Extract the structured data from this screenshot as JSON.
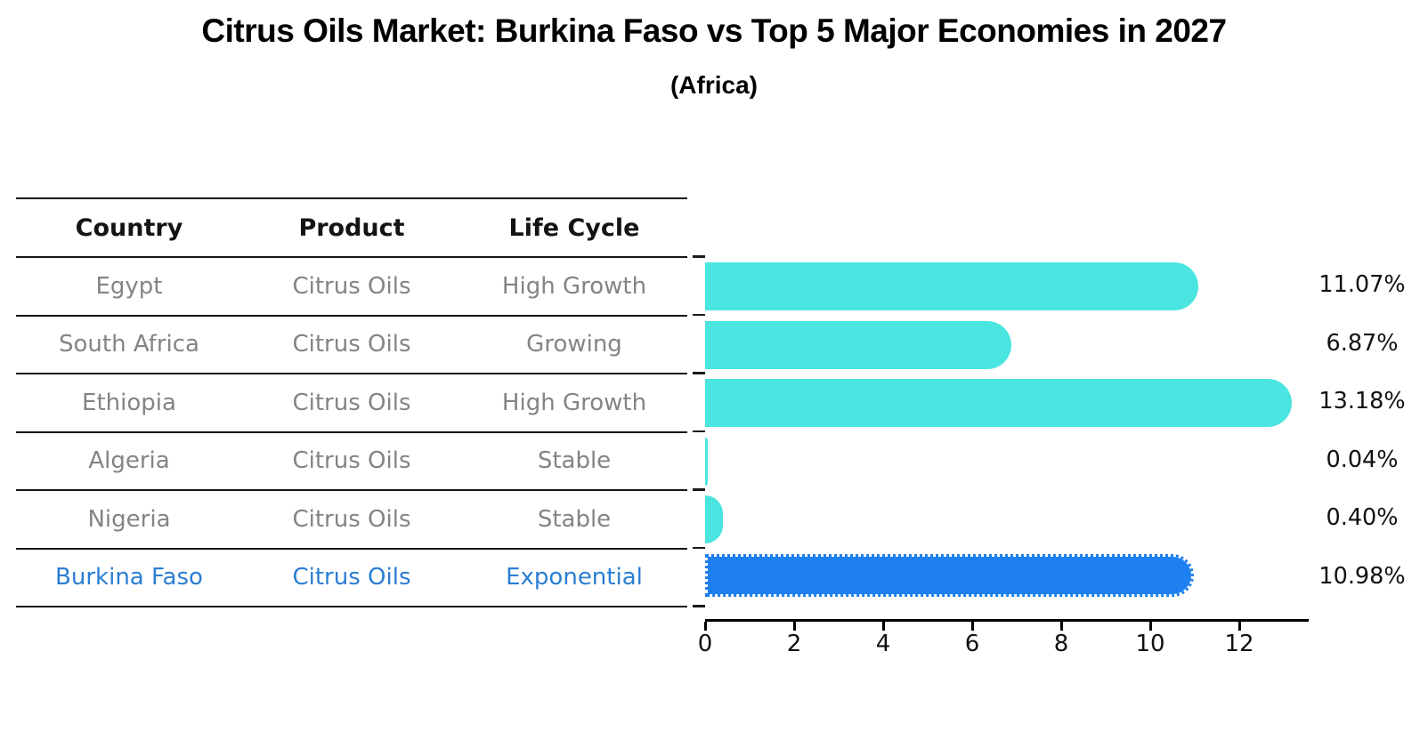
{
  "title": "Citrus Oils Market: Burkina Faso vs Top 5 Major Economies in 2027",
  "subtitle": "(Africa)",
  "table": {
    "headers": {
      "country": "Country",
      "product": "Product",
      "life_cycle": "Life Cycle"
    },
    "rows": [
      {
        "country": "Egypt",
        "product": "Citrus Oils",
        "life_cycle": "High Growth"
      },
      {
        "country": "South Africa",
        "product": "Citrus Oils",
        "life_cycle": "Growing"
      },
      {
        "country": "Ethiopia",
        "product": "Citrus Oils",
        "life_cycle": "High Growth"
      },
      {
        "country": "Algeria",
        "product": "Citrus Oils",
        "life_cycle": "Stable"
      },
      {
        "country": "Nigeria",
        "product": "Citrus Oils",
        "life_cycle": "Stable"
      },
      {
        "country": "Burkina Faso",
        "product": "Citrus Oils",
        "life_cycle": "Exponential"
      }
    ],
    "highlight_row": "Burkina Faso"
  },
  "chart_data": {
    "type": "bar",
    "orientation": "horizontal",
    "categories": [
      "Egypt",
      "South Africa",
      "Ethiopia",
      "Algeria",
      "Nigeria",
      "Burkina Faso"
    ],
    "values": [
      11.07,
      6.87,
      13.18,
      0.04,
      0.4,
      10.98
    ],
    "value_labels": [
      "11.07%",
      "6.87%",
      "13.18%",
      "0.04%",
      "0.40%",
      "10.98%"
    ],
    "x_tick_labels": [
      "0",
      "2",
      "4",
      "6",
      "8",
      "10",
      "12"
    ],
    "xlim": [
      0,
      13.56
    ],
    "grid": false,
    "legend": "none",
    "bar_color": "#4AE5E1",
    "highlight_bar_color": "#1E80F0",
    "highlight_index": 5,
    "highlight_edge_style": "dotted"
  },
  "colors": {
    "background": "#ffffff",
    "title_text": "#000000",
    "table_header_text": "#141414",
    "table_row_text": "#848484",
    "highlight_text": "#2b7ed2",
    "bar_cyan": "#4AE5E1",
    "bar_blue": "#1E80F0",
    "axis": "#000000"
  }
}
